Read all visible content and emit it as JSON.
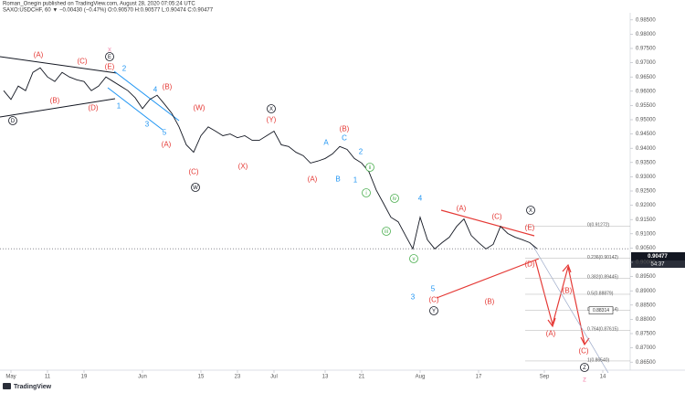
{
  "header": {
    "publisher": "Roman_Onegin published on TradingView.com, August 28, 2020 07:05:24 UTC",
    "symbol_line": "SAXO:USDCHF, 60  ▼ −0.00430 (−0.47%)  O:0.90570  H:0.90577  L:0.90474  C:0.90477"
  },
  "footer": {
    "brand": "TradingView"
  },
  "chart_data": {
    "type": "line",
    "categories": [
      null,
      "May",
      null,
      null,
      null,
      null,
      "11",
      null,
      null,
      null,
      null,
      "19",
      null,
      null,
      null,
      null,
      null,
      null,
      null,
      "Jun",
      null,
      null,
      null,
      null,
      null,
      null,
      null,
      "15",
      null,
      null,
      null,
      null,
      "23",
      null,
      null,
      null,
      null,
      "Jul",
      null,
      null,
      null,
      null,
      null,
      null,
      "13",
      null,
      null,
      null,
      null,
      "21",
      null,
      null,
      null,
      null,
      null,
      null,
      null,
      "Aug",
      null,
      null,
      null,
      null,
      null,
      null,
      null,
      "17",
      null,
      null,
      null,
      null,
      null,
      null,
      null,
      null,
      "Sep",
      null,
      null,
      null,
      null,
      null,
      null,
      null,
      "14",
      null,
      null,
      null
    ],
    "series": [
      {
        "name": "USDCHF",
        "color": "#131722",
        "values": [
          0.9602,
          0.9571,
          0.9618,
          0.9602,
          0.9666,
          0.9682,
          0.965,
          0.9634,
          0.9666,
          0.965,
          0.964,
          0.9634,
          0.9602,
          0.9618,
          0.965,
          0.9634,
          0.9618,
          0.9602,
          0.9577,
          0.9539,
          0.9571,
          0.9586,
          0.9555,
          0.9523,
          0.9475,
          0.9412,
          0.9386,
          0.9444,
          0.9475,
          0.946,
          0.9444,
          0.945,
          0.9437,
          0.9444,
          0.9428,
          0.9428,
          0.9444,
          0.946,
          0.9412,
          0.9406,
          0.9386,
          0.9374,
          0.9348,
          0.9355,
          0.9364,
          0.938,
          0.9406,
          0.9396,
          0.9364,
          0.9348,
          0.9317,
          0.9253,
          0.9206,
          0.9158,
          0.9142,
          0.9094,
          0.9047,
          0.9158,
          0.9079,
          0.9047,
          0.9069,
          0.9088,
          0.9126,
          0.9152,
          0.9094,
          0.9069,
          0.9047,
          0.9063,
          0.9126,
          0.9101,
          0.9088,
          0.9079,
          0.9069,
          0.90477,
          null,
          null,
          null,
          null,
          null,
          null,
          null,
          null,
          null,
          null,
          null,
          null
        ]
      }
    ],
    "ylim": [
      0.8625,
      0.9875
    ],
    "yticks": [
      {
        "value": 0.985,
        "label": "0.98500"
      },
      {
        "value": 0.98,
        "label": "0.98000"
      },
      {
        "value": 0.975,
        "label": "0.97500"
      },
      {
        "value": 0.97,
        "label": "0.97000"
      },
      {
        "value": 0.965,
        "label": "0.96500"
      },
      {
        "value": 0.96,
        "label": "0.96000"
      },
      {
        "value": 0.955,
        "label": "0.95500"
      },
      {
        "value": 0.95,
        "label": "0.95000"
      },
      {
        "value": 0.945,
        "label": "0.94500"
      },
      {
        "value": 0.94,
        "label": "0.94000"
      },
      {
        "value": 0.935,
        "label": "0.93500"
      },
      {
        "value": 0.93,
        "label": "0.93000"
      },
      {
        "value": 0.925,
        "label": "0.92500"
      },
      {
        "value": 0.92,
        "label": "0.92000"
      },
      {
        "value": 0.915,
        "label": "0.91500"
      },
      {
        "value": 0.91,
        "label": "0.91000"
      },
      {
        "value": 0.905,
        "label": "0.90500"
      },
      {
        "value": 0.9,
        "label": "0.90000"
      },
      {
        "value": 0.895,
        "label": "0.89500"
      },
      {
        "value": 0.89,
        "label": "0.89000"
      },
      {
        "value": 0.885,
        "label": "0.88500"
      },
      {
        "value": 0.88,
        "label": "0.88000"
      },
      {
        "value": 0.875,
        "label": "0.87500"
      },
      {
        "value": 0.87,
        "label": "0.87000"
      },
      {
        "value": 0.865,
        "label": "0.86500"
      }
    ],
    "grid": false,
    "price_label": "0.90477",
    "countdown": "54:37",
    "target_label": {
      "value": 0.88314,
      "label": "0.88314"
    },
    "fib_levels": [
      {
        "value": 0.91272,
        "label": "0(0.91272)"
      },
      {
        "value": 0.90142,
        "label": "0.236(0.90142)"
      },
      {
        "value": 0.89445,
        "label": "0.382(0.89445)"
      },
      {
        "value": 0.88879,
        "label": "0.5(0.88879)"
      },
      {
        "value": 0.88314,
        "label": "0.618(0.88314)"
      },
      {
        "value": 0.87615,
        "label": "0.764(0.87615)"
      },
      {
        "value": 0.8654,
        "label": "1(0.86540)"
      }
    ],
    "wave_labels": [
      {
        "text": "(A)",
        "color": "#e53935"
      },
      {
        "text": "(B)",
        "color": "#e53935"
      },
      {
        "text": "(C)",
        "color": "#e53935"
      },
      {
        "text": "(D)",
        "color": "#e53935"
      },
      {
        "text": "(E)",
        "color": "#e53935"
      },
      {
        "text": "x",
        "color": "#f48fb1"
      },
      {
        "text": "(A)",
        "color": "#e53935"
      },
      {
        "text": "(B)",
        "color": "#e53935"
      },
      {
        "text": "(C)",
        "color": "#e53935"
      },
      {
        "text": "(W)",
        "color": "#e53935"
      },
      {
        "text": "(X)",
        "color": "#e53935"
      },
      {
        "text": "(Y)",
        "color": "#e53935"
      },
      {
        "text": "(A)",
        "color": "#e53935"
      },
      {
        "text": "(B)",
        "color": "#e53935"
      },
      {
        "text": "(A)",
        "color": "#e53935"
      },
      {
        "text": "(C)",
        "color": "#e53935"
      },
      {
        "text": "(E)",
        "color": "#e53935"
      },
      {
        "text": "(D)",
        "color": "#e53935"
      },
      {
        "text": "(C)",
        "color": "#e53935"
      },
      {
        "text": "(B)",
        "color": "#e53935"
      },
      {
        "text": "(A)",
        "color": "#e53935"
      },
      {
        "text": "(B)",
        "color": "#e53935"
      },
      {
        "text": "(C)",
        "color": "#e53935"
      },
      {
        "text": "z",
        "color": "#f48fb1"
      },
      {
        "text": "2",
        "color": "#2196f3"
      },
      {
        "text": "1",
        "color": "#2196f3"
      },
      {
        "text": "3",
        "color": "#2196f3"
      },
      {
        "text": "4",
        "color": "#2196f3"
      },
      {
        "text": "5",
        "color": "#2196f3"
      },
      {
        "text": "A",
        "color": "#2196f3"
      },
      {
        "text": "C",
        "color": "#2196f3"
      },
      {
        "text": "2",
        "color": "#2196f3"
      },
      {
        "text": "B",
        "color": "#2196f3"
      },
      {
        "text": "1",
        "color": "#2196f3"
      },
      {
        "text": "4",
        "color": "#2196f3"
      },
      {
        "text": "5",
        "color": "#2196f3"
      },
      {
        "text": "3",
        "color": "#2196f3"
      },
      {
        "text": "E",
        "color": "#131722",
        "circled": true
      },
      {
        "text": "D",
        "color": "#131722",
        "circled": true
      },
      {
        "text": "W",
        "color": "#131722",
        "circled": true
      },
      {
        "text": "X",
        "color": "#131722",
        "circled": true
      },
      {
        "text": "Y",
        "color": "#131722",
        "circled": true
      },
      {
        "text": "X",
        "color": "#131722",
        "circled": true
      },
      {
        "text": "Z",
        "color": "#131722",
        "circled": true
      },
      {
        "text": "ii",
        "color": "#4caf50",
        "circled": true
      },
      {
        "text": "i",
        "color": "#4caf50",
        "circled": true
      },
      {
        "text": "iv",
        "color": "#4caf50",
        "circled": true
      },
      {
        "text": "iii",
        "color": "#4caf50",
        "circled": true
      },
      {
        "text": "v",
        "color": "#4caf50",
        "circled": true
      }
    ]
  }
}
